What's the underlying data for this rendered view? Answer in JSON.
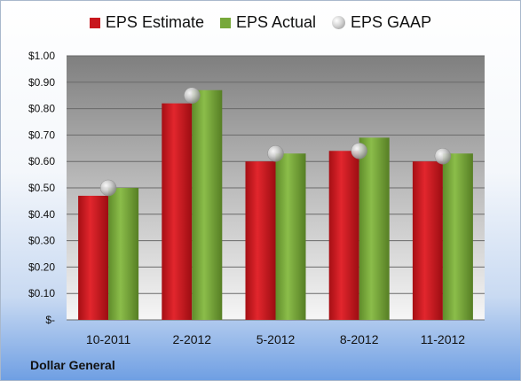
{
  "chart_data": {
    "type": "bar",
    "categories": [
      "10-2011",
      "2-2012",
      "5-2012",
      "8-2012",
      "11-2012"
    ],
    "series": [
      {
        "name": "EPS Estimate",
        "type": "bar",
        "color": "#c8161d",
        "values": [
          0.47,
          0.82,
          0.6,
          0.64,
          0.6
        ]
      },
      {
        "name": "EPS Actual",
        "type": "bar",
        "color": "#77a83a",
        "values": [
          0.5,
          0.87,
          0.63,
          0.69,
          0.63
        ]
      },
      {
        "name": "EPS GAAP",
        "type": "scatter",
        "color": "#bdbdbd",
        "values": [
          0.5,
          0.85,
          0.63,
          0.64,
          0.62
        ]
      }
    ],
    "ylim": [
      0,
      1.0
    ],
    "yticks": [
      0,
      0.1,
      0.2,
      0.3,
      0.4,
      0.5,
      0.6,
      0.7,
      0.8,
      0.9,
      1.0
    ],
    "ytick_labels": [
      "$-",
      "$0.10",
      "$0.20",
      "$0.30",
      "$0.40",
      "$0.50",
      "$0.60",
      "$0.70",
      "$0.80",
      "$0.90",
      "$1.00"
    ],
    "grid": true,
    "legend": "top",
    "footnote": "Dollar General"
  }
}
